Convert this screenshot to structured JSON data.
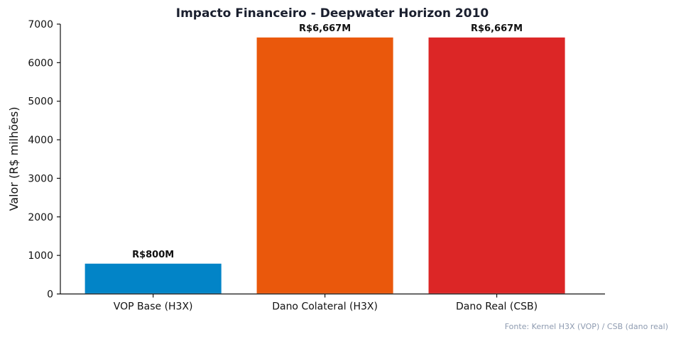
{
  "chart_data": {
    "type": "bar",
    "title": "Impacto Financeiro - Deepwater Horizon 2010",
    "xlabel": "",
    "ylabel": "Valor (R$ milhões)",
    "ylim": [
      0,
      7000
    ],
    "yticks": [
      0,
      1000,
      2000,
      3000,
      4000,
      5000,
      6000,
      7000
    ],
    "categories": [
      "VOP Base (H3X)",
      "Dano Colateral (H3X)",
      "Dano Real (CSB)"
    ],
    "values": [
      800,
      6667,
      6667
    ],
    "data_labels": [
      "R$800M",
      "R$6,667M",
      "R$6,667M"
    ],
    "colors": [
      "#0284c7",
      "#ea580c",
      "#dc2626"
    ],
    "grid": false,
    "legend": "none"
  },
  "footnote": "Fonte: Kernel H3X (VOP) / CSB (dano real)"
}
